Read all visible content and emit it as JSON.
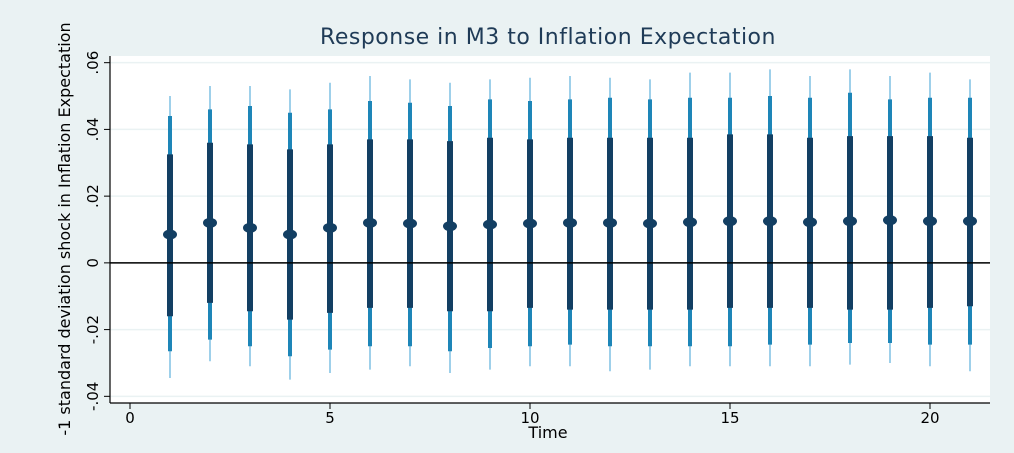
{
  "chart_data": {
    "type": "scatter",
    "title": "Response in M3 to Inflation Expectation",
    "xlabel": "Time",
    "ylabel": "-1 standard deviation shock in Inflation Expectation",
    "xlim": [
      -0.5,
      21.5
    ],
    "ylim": [
      -0.042,
      0.062
    ],
    "x_ticks": [
      0,
      5,
      10,
      15,
      20
    ],
    "y_ticks": [
      -0.04,
      -0.02,
      0,
      0.02,
      0.04,
      0.06
    ],
    "y_tick_labels": [
      "-.04",
      "-.02",
      "0",
      ".02",
      ".04",
      ".06"
    ],
    "x_tick_labels": [
      "0",
      "5",
      "10",
      "15",
      "20"
    ],
    "grid": true,
    "reference_line_y": 0,
    "colors": {
      "background": "#eaf2f3",
      "plot_area": "#ffffff",
      "point": "#133f63",
      "band_inner": "#133f63",
      "band_middle": "#1e86b8",
      "band_outer": "#5fb0dc",
      "zero_line": "#000000",
      "title": "#1f3b57"
    },
    "series": [
      {
        "x": [
          1,
          2,
          3,
          4,
          5,
          6,
          7,
          8,
          9,
          10,
          11,
          12,
          13,
          14,
          15,
          16,
          17,
          18,
          19,
          20,
          21
        ],
        "point": [
          0.0085,
          0.012,
          0.0105,
          0.0085,
          0.0105,
          0.012,
          0.0118,
          0.011,
          0.0115,
          0.0118,
          0.012,
          0.012,
          0.0118,
          0.0122,
          0.0125,
          0.0125,
          0.0122,
          0.0125,
          0.0128,
          0.0125,
          0.0125
        ],
        "inner_low": [
          -0.016,
          -0.012,
          -0.0145,
          -0.017,
          -0.015,
          -0.0135,
          -0.0135,
          -0.0145,
          -0.0145,
          -0.0135,
          -0.014,
          -0.014,
          -0.014,
          -0.014,
          -0.0135,
          -0.0135,
          -0.0135,
          -0.014,
          -0.014,
          -0.0135,
          -0.013
        ],
        "inner_high": [
          0.0325,
          0.036,
          0.0355,
          0.034,
          0.0355,
          0.037,
          0.037,
          0.0365,
          0.0375,
          0.037,
          0.0375,
          0.0375,
          0.0375,
          0.0375,
          0.0385,
          0.0385,
          0.0375,
          0.038,
          0.038,
          0.038,
          0.0375
        ],
        "mid_low": [
          -0.0265,
          -0.023,
          -0.025,
          -0.028,
          -0.026,
          -0.025,
          -0.025,
          -0.0265,
          -0.0255,
          -0.025,
          -0.0245,
          -0.025,
          -0.025,
          -0.025,
          -0.025,
          -0.0245,
          -0.0245,
          -0.024,
          -0.024,
          -0.0245,
          -0.0245
        ],
        "mid_high": [
          0.044,
          0.046,
          0.047,
          0.045,
          0.046,
          0.0485,
          0.048,
          0.047,
          0.049,
          0.0485,
          0.049,
          0.0495,
          0.049,
          0.0495,
          0.0495,
          0.05,
          0.0495,
          0.051,
          0.049,
          0.0495,
          0.0495
        ],
        "outer_low": [
          -0.0345,
          -0.0295,
          -0.031,
          -0.035,
          -0.033,
          -0.032,
          -0.031,
          -0.033,
          -0.032,
          -0.031,
          -0.031,
          -0.0325,
          -0.032,
          -0.031,
          -0.031,
          -0.031,
          -0.031,
          -0.0305,
          -0.03,
          -0.031,
          -0.0325
        ],
        "outer_high": [
          0.05,
          0.053,
          0.053,
          0.052,
          0.054,
          0.056,
          0.055,
          0.054,
          0.055,
          0.0555,
          0.056,
          0.0555,
          0.055,
          0.057,
          0.057,
          0.058,
          0.056,
          0.058,
          0.056,
          0.057,
          0.055
        ]
      }
    ]
  }
}
